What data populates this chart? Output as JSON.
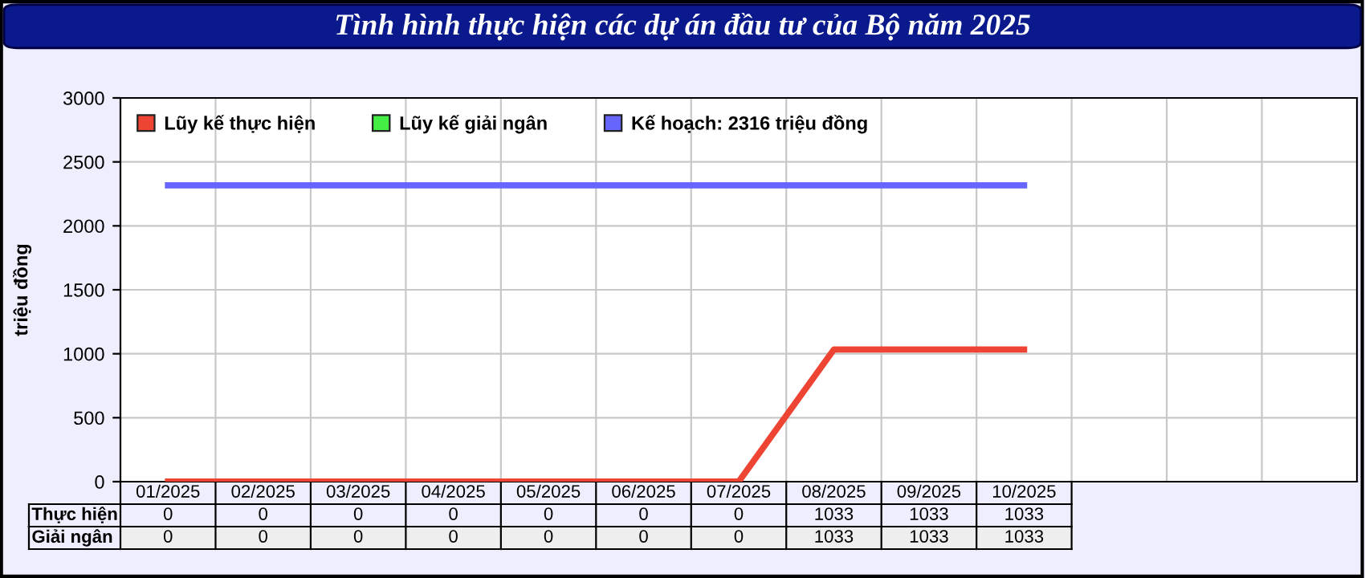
{
  "chart_data": {
    "type": "line",
    "title": "Tình hình thực hiện các dự án đầu tư của Bộ năm 2025",
    "ylabel": "triệu đồng",
    "categories": [
      "01/2025",
      "02/2025",
      "03/2025",
      "04/2025",
      "05/2025",
      "06/2025",
      "07/2025",
      "08/2025",
      "09/2025",
      "10/2025",
      null,
      null,
      null
    ],
    "series": [
      {
        "name": "Lũy kế thực hiện",
        "color": "#ee4433",
        "values": [
          0,
          0,
          0,
          0,
          0,
          0,
          0,
          1033,
          1033,
          1033,
          null,
          null,
          null
        ],
        "value_labels": [
          "0",
          "0",
          "0",
          "0",
          "0",
          "0",
          "0",
          "1033",
          "1033",
          "1033",
          null,
          null,
          null
        ]
      },
      {
        "name": "Lũy kế giải ngân",
        "color": "#44ee44",
        "values": [
          null,
          null,
          null,
          null,
          null,
          null,
          null,
          null,
          null,
          null,
          null,
          null,
          null
        ],
        "value_labels": [
          "0",
          "0",
          "0",
          "0",
          "0",
          "0",
          "0",
          "1033",
          "1033",
          "1033",
          null,
          null,
          null
        ]
      },
      {
        "name": "Kế hoạch: 2316 triệu đồng",
        "color": "#6666ff",
        "values": [
          2316,
          2316,
          2316,
          2316,
          2316,
          2316,
          2316,
          2316,
          2316,
          2316,
          null,
          null,
          null
        ]
      }
    ],
    "annotations": [
      "Thực hiện",
      "Giải ngân"
    ],
    "ylim": [
      0,
      3000
    ],
    "yticks": [
      0,
      500,
      1000,
      1500,
      2000,
      2500,
      3000
    ],
    "grid": true,
    "legend": "top left",
    "marker": "none",
    "line_style": "solid"
  }
}
